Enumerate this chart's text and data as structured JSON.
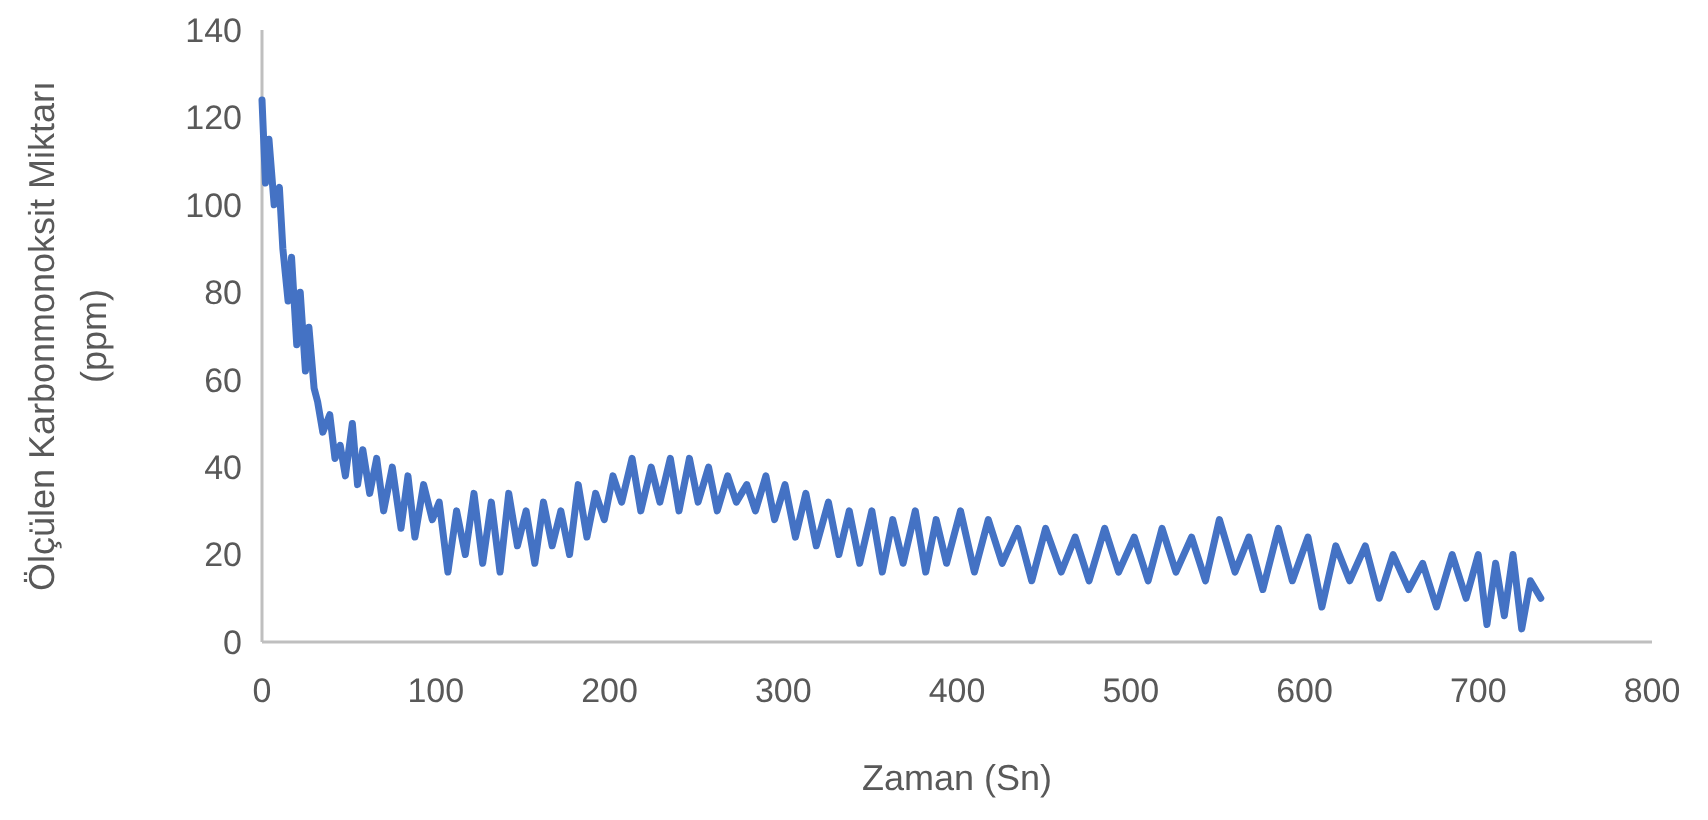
{
  "chart_data": {
    "type": "line",
    "xlabel": "Zaman (Sn)",
    "ylabel": "Ölçülen Karbonmonoksit Miktarı\n(ppm)",
    "xlim": [
      0,
      800
    ],
    "xticks": [
      0,
      100,
      200,
      300,
      400,
      500,
      600,
      700,
      800
    ],
    "ylim": [
      0,
      140
    ],
    "yticks": [
      0,
      20,
      40,
      60,
      80,
      100,
      120,
      140
    ],
    "grid": false,
    "line_style": "solid",
    "series": [
      {
        "color": "#4472c4",
        "x": [
          0,
          2,
          4,
          7,
          10,
          12,
          15,
          17,
          20,
          22,
          25,
          27,
          30,
          32,
          35,
          39,
          42,
          45,
          48,
          52,
          55,
          58,
          62,
          66,
          70,
          75,
          80,
          84,
          88,
          93,
          98,
          102,
          107,
          112,
          117,
          122,
          127,
          132,
          137,
          142,
          147,
          152,
          157,
          162,
          167,
          172,
          177,
          182,
          187,
          192,
          197,
          202,
          207,
          213,
          218,
          224,
          229,
          235,
          240,
          246,
          251,
          257,
          262,
          268,
          273,
          279,
          284,
          290,
          295,
          301,
          307,
          313,
          319,
          326,
          332,
          338,
          344,
          351,
          357,
          363,
          369,
          376,
          382,
          388,
          394,
          402,
          410,
          418,
          426,
          435,
          443,
          451,
          460,
          468,
          476,
          485,
          493,
          502,
          510,
          518,
          526,
          535,
          543,
          551,
          560,
          568,
          576,
          585,
          593,
          602,
          610,
          618,
          626,
          635,
          643,
          651,
          660,
          668,
          676,
          685,
          693,
          700,
          705,
          710,
          715,
          720,
          725,
          730,
          736
        ],
        "values": [
          124,
          105,
          115,
          100,
          104,
          90,
          78,
          88,
          68,
          80,
          62,
          72,
          58,
          55,
          48,
          52,
          42,
          45,
          38,
          50,
          36,
          44,
          34,
          42,
          30,
          40,
          26,
          38,
          24,
          36,
          28,
          32,
          16,
          30,
          20,
          34,
          18,
          32,
          16,
          34,
          22,
          30,
          18,
          32,
          22,
          30,
          20,
          36,
          24,
          34,
          28,
          38,
          32,
          42,
          30,
          40,
          32,
          42,
          30,
          42,
          32,
          40,
          30,
          38,
          32,
          36,
          30,
          38,
          28,
          36,
          24,
          34,
          22,
          32,
          20,
          30,
          18,
          30,
          16,
          28,
          18,
          30,
          16,
          28,
          18,
          30,
          16,
          28,
          18,
          26,
          14,
          26,
          16,
          24,
          14,
          26,
          16,
          24,
          14,
          26,
          16,
          24,
          14,
          28,
          16,
          24,
          12,
          26,
          14,
          24,
          8,
          22,
          14,
          22,
          10,
          20,
          12,
          18,
          8,
          20,
          10,
          20,
          4,
          18,
          6,
          20,
          3,
          14,
          10
        ]
      }
    ]
  }
}
